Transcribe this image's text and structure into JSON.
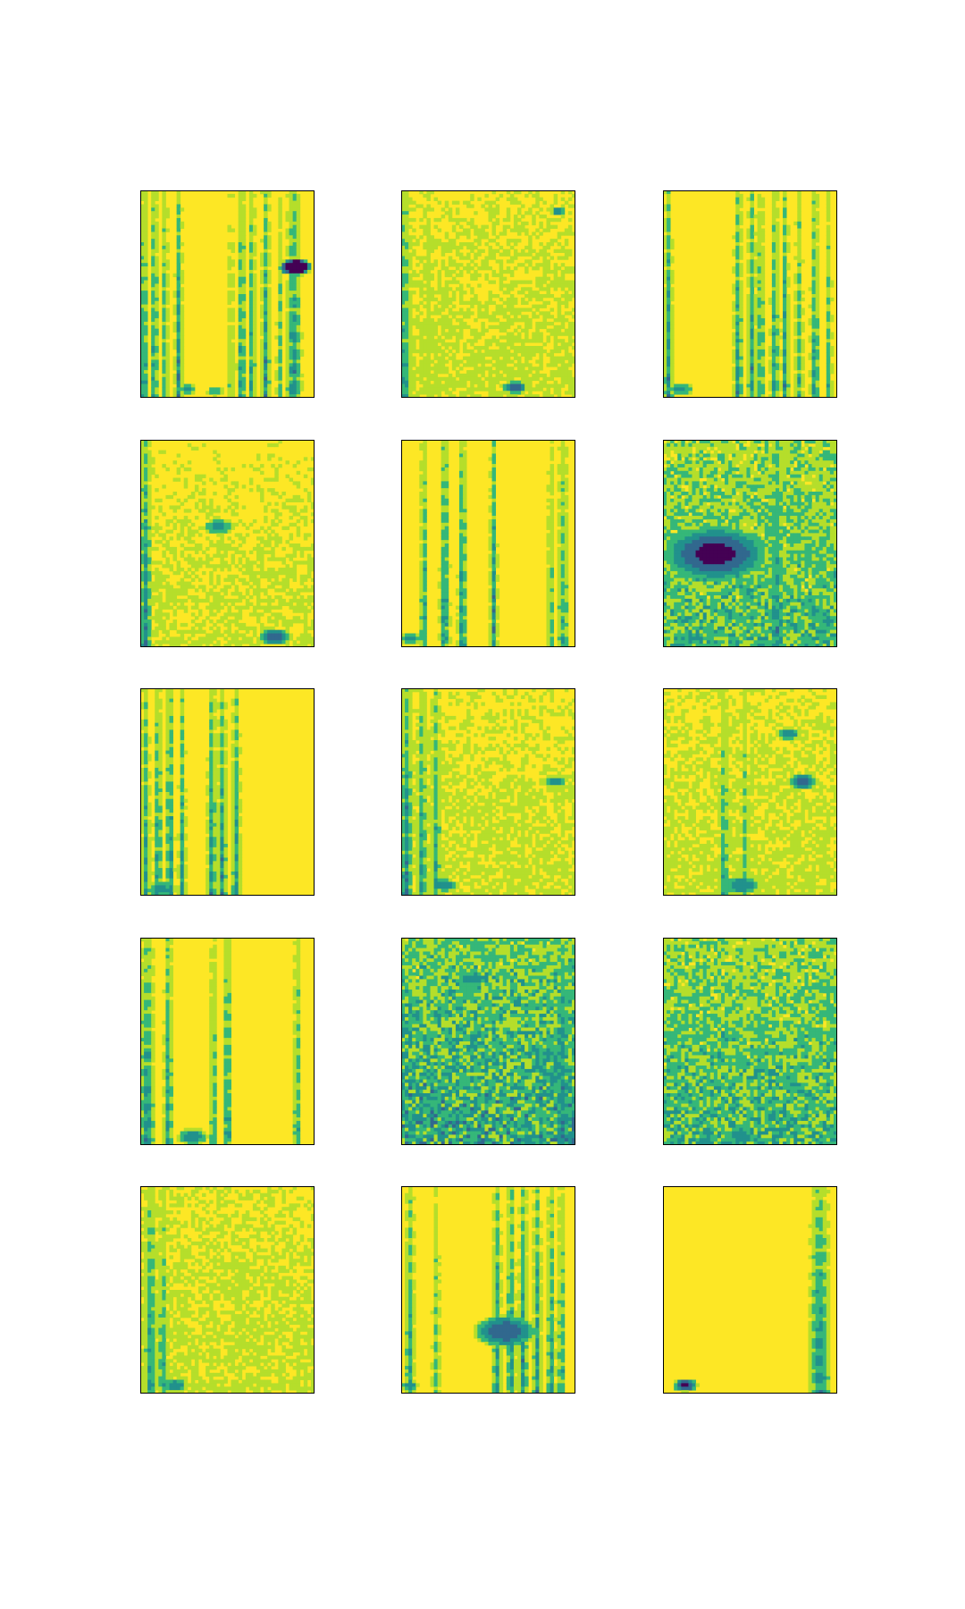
{
  "chart_data": {
    "type": "heatmap",
    "grid": {
      "rows": 5,
      "cols": 3
    },
    "colormap": "viridis",
    "axes_ticks": false,
    "palette": {
      "background": "#fde725",
      "light": "#b5de2b",
      "mid": "#35b779",
      "teal": "#21918c",
      "blue": "#31688e",
      "dark": "#440154"
    },
    "panels": [
      {
        "row": 1,
        "col": 1,
        "noise": 0.1,
        "bands": [
          [
            0.02,
            0.035,
            0.85
          ],
          [
            0.08,
            0.03,
            0.85
          ],
          [
            0.14,
            0.03,
            0.7
          ],
          [
            0.22,
            0.03,
            0.9
          ],
          [
            0.52,
            0.03,
            0.5
          ],
          [
            0.58,
            0.035,
            0.85
          ],
          [
            0.64,
            0.03,
            0.8
          ],
          [
            0.72,
            0.035,
            0.85
          ],
          [
            0.8,
            0.03,
            0.55
          ],
          [
            0.88,
            0.06,
            0.9
          ]
        ],
        "blobs": [
          [
            0.27,
            0.96,
            0.06,
            0.3
          ],
          [
            0.43,
            0.97,
            0.06,
            0.25
          ],
          [
            0.89,
            0.37,
            0.1,
            0.8
          ]
        ]
      },
      {
        "row": 1,
        "col": 2,
        "noise": 0.3,
        "bands": [
          [
            0.02,
            0.05,
            0.85
          ],
          [
            0.16,
            0.03,
            0.4
          ],
          [
            0.62,
            0.03,
            0.35
          ]
        ],
        "blobs": [
          [
            0.65,
            0.95,
            0.08,
            0.45
          ],
          [
            0.9,
            0.1,
            0.05,
            0.4
          ]
        ]
      },
      {
        "row": 1,
        "col": 3,
        "noise": 0.08,
        "bands": [
          [
            0.03,
            0.035,
            0.85
          ],
          [
            0.43,
            0.035,
            0.85
          ],
          [
            0.51,
            0.035,
            0.8
          ],
          [
            0.56,
            0.035,
            0.7
          ],
          [
            0.64,
            0.035,
            0.8
          ],
          [
            0.7,
            0.03,
            0.85
          ],
          [
            0.78,
            0.035,
            0.65
          ],
          [
            0.87,
            0.035,
            0.85
          ],
          [
            0.95,
            0.03,
            0.6
          ]
        ],
        "blobs": [
          [
            0.1,
            0.96,
            0.08,
            0.3
          ]
        ]
      },
      {
        "row": 2,
        "col": 1,
        "noise": 0.25,
        "bands": [
          [
            0.03,
            0.05,
            0.95
          ],
          [
            0.75,
            0.03,
            0.3
          ]
        ],
        "blobs": [
          [
            0.77,
            0.95,
            0.1,
            0.45
          ],
          [
            0.45,
            0.42,
            0.1,
            0.3
          ]
        ]
      },
      {
        "row": 2,
        "col": 2,
        "noise": 0.12,
        "bands": [
          [
            0.13,
            0.03,
            0.8
          ],
          [
            0.25,
            0.04,
            0.9
          ],
          [
            0.35,
            0.035,
            0.9
          ],
          [
            0.53,
            0.03,
            0.9
          ],
          [
            0.86,
            0.035,
            0.55
          ],
          [
            0.93,
            0.05,
            0.65
          ]
        ],
        "blobs": [
          [
            0.05,
            0.96,
            0.07,
            0.3
          ]
        ]
      },
      {
        "row": 2,
        "col": 3,
        "noise": 0.6,
        "bands": [
          [
            0.65,
            0.06,
            0.9
          ],
          [
            0.9,
            0.06,
            0.6
          ]
        ],
        "blobs": [
          [
            0.3,
            0.55,
            0.35,
            0.5
          ],
          [
            0.18,
            0.96,
            0.06,
            0.3
          ]
        ]
      },
      {
        "row": 3,
        "col": 1,
        "noise": 0.1,
        "bands": [
          [
            0.03,
            0.035,
            0.8
          ],
          [
            0.1,
            0.035,
            0.8
          ],
          [
            0.17,
            0.035,
            0.9
          ],
          [
            0.24,
            0.03,
            0.75
          ],
          [
            0.41,
            0.035,
            0.9
          ],
          [
            0.47,
            0.035,
            0.85
          ],
          [
            0.55,
            0.035,
            0.8
          ]
        ],
        "blobs": [
          [
            0.12,
            0.97,
            0.1,
            0.3
          ]
        ]
      },
      {
        "row": 3,
        "col": 2,
        "noise": 0.28,
        "bands": [
          [
            0.03,
            0.05,
            0.95
          ],
          [
            0.12,
            0.04,
            0.85
          ],
          [
            0.2,
            0.04,
            0.75
          ],
          [
            0.7,
            0.03,
            0.35
          ]
        ],
        "blobs": [
          [
            0.25,
            0.95,
            0.08,
            0.35
          ],
          [
            0.88,
            0.45,
            0.07,
            0.35
          ]
        ]
      },
      {
        "row": 3,
        "col": 3,
        "noise": 0.3,
        "bands": [
          [
            0.35,
            0.04,
            0.7
          ],
          [
            0.47,
            0.035,
            0.55
          ]
        ],
        "blobs": [
          [
            0.45,
            0.95,
            0.12,
            0.35
          ],
          [
            0.8,
            0.45,
            0.1,
            0.4
          ],
          [
            0.72,
            0.22,
            0.08,
            0.35
          ]
        ]
      },
      {
        "row": 4,
        "col": 1,
        "noise": 0.1,
        "bands": [
          [
            0.04,
            0.06,
            0.9
          ],
          [
            0.16,
            0.035,
            0.85
          ],
          [
            0.42,
            0.035,
            0.65
          ],
          [
            0.5,
            0.035,
            0.85
          ],
          [
            0.9,
            0.03,
            0.7
          ]
        ],
        "blobs": [
          [
            0.3,
            0.96,
            0.1,
            0.35
          ]
        ]
      },
      {
        "row": 4,
        "col": 2,
        "noise": 0.8,
        "bands": [
          [
            0.93,
            0.06,
            0.95
          ],
          [
            0.8,
            0.04,
            0.7
          ]
        ],
        "blobs": [
          [
            0.4,
            0.2,
            0.1,
            0.35
          ],
          [
            0.05,
            0.96,
            0.06,
            0.3
          ]
        ]
      },
      {
        "row": 4,
        "col": 3,
        "noise": 0.65,
        "bands": [
          [
            0.55,
            0.05,
            0.7
          ]
        ],
        "blobs": [
          [
            0.45,
            0.96,
            0.1,
            0.35
          ]
        ]
      },
      {
        "row": 5,
        "col": 1,
        "noise": 0.3,
        "bands": [
          [
            0.06,
            0.05,
            0.85
          ],
          [
            0.13,
            0.04,
            0.7
          ]
        ],
        "blobs": [
          [
            0.2,
            0.96,
            0.08,
            0.35
          ]
        ]
      },
      {
        "row": 5,
        "col": 2,
        "noise": 0.12,
        "bands": [
          [
            0.05,
            0.04,
            0.75
          ],
          [
            0.2,
            0.035,
            0.55
          ],
          [
            0.55,
            0.035,
            0.85
          ],
          [
            0.63,
            0.035,
            0.9
          ],
          [
            0.7,
            0.035,
            0.9
          ],
          [
            0.78,
            0.035,
            0.85
          ],
          [
            0.86,
            0.035,
            0.8
          ],
          [
            0.92,
            0.035,
            0.7
          ]
        ],
        "blobs": [
          [
            0.6,
            0.7,
            0.2,
            0.45
          ],
          [
            0.05,
            0.96,
            0.06,
            0.3
          ]
        ]
      },
      {
        "row": 5,
        "col": 3,
        "noise": 0.04,
        "bands": [
          [
            0.9,
            0.08,
            0.9
          ]
        ],
        "blobs": [
          [
            0.13,
            0.96,
            0.08,
            0.5
          ]
        ]
      }
    ]
  }
}
